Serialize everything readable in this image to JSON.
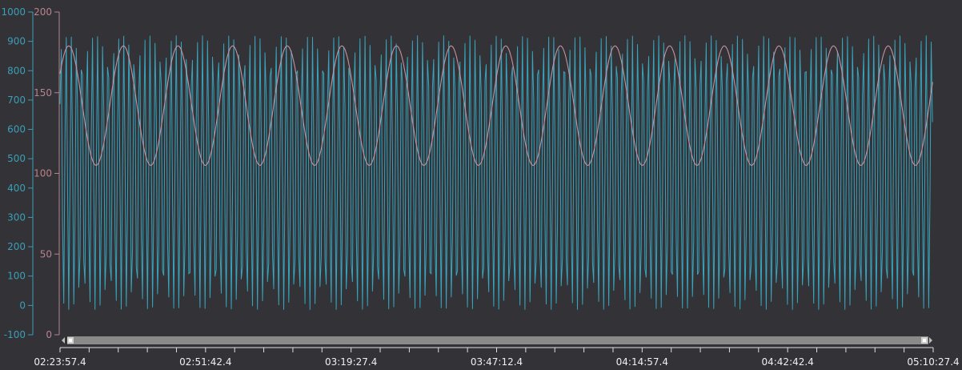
{
  "chart_data": {
    "type": "line",
    "x_axis": {
      "range": [
        "02:23:57.4",
        "05:10:27.4"
      ],
      "tick_labels": [
        "02:23:57.4",
        "02:51:42.4",
        "03:19:27.4",
        "03:47:12.4",
        "04:14:57.4",
        "04:42:42.4",
        "05:10:27.4"
      ],
      "minor_ticks_per_major": 5
    },
    "y_axes": [
      {
        "id": "left-outer",
        "range": [
          -100,
          1000
        ],
        "tick_labels": [
          "1000",
          "900",
          "800",
          "700",
          "600",
          "500",
          "400",
          "300",
          "200",
          "100",
          "0",
          "-100"
        ],
        "color": "#3a9fb8"
      },
      {
        "id": "left-inner",
        "range": [
          0,
          200
        ],
        "tick_labels": [
          "200",
          "150",
          "100",
          "50",
          "0"
        ],
        "color": "#b9838f"
      }
    ],
    "series": [
      {
        "axis": "left-outer",
        "color": "#38b0cc",
        "shape": "sine",
        "min": -15,
        "max": 920,
        "period_seconds": 60
      },
      {
        "axis": "left-inner",
        "color": "#c592a0",
        "shape": "sine",
        "min": 105,
        "max": 179,
        "period_seconds": 625,
        "first_peak": "02:25:37.4"
      }
    ],
    "scrollbar": {
      "visible_fraction": 1.0
    },
    "grid": false,
    "legend": "none"
  }
}
